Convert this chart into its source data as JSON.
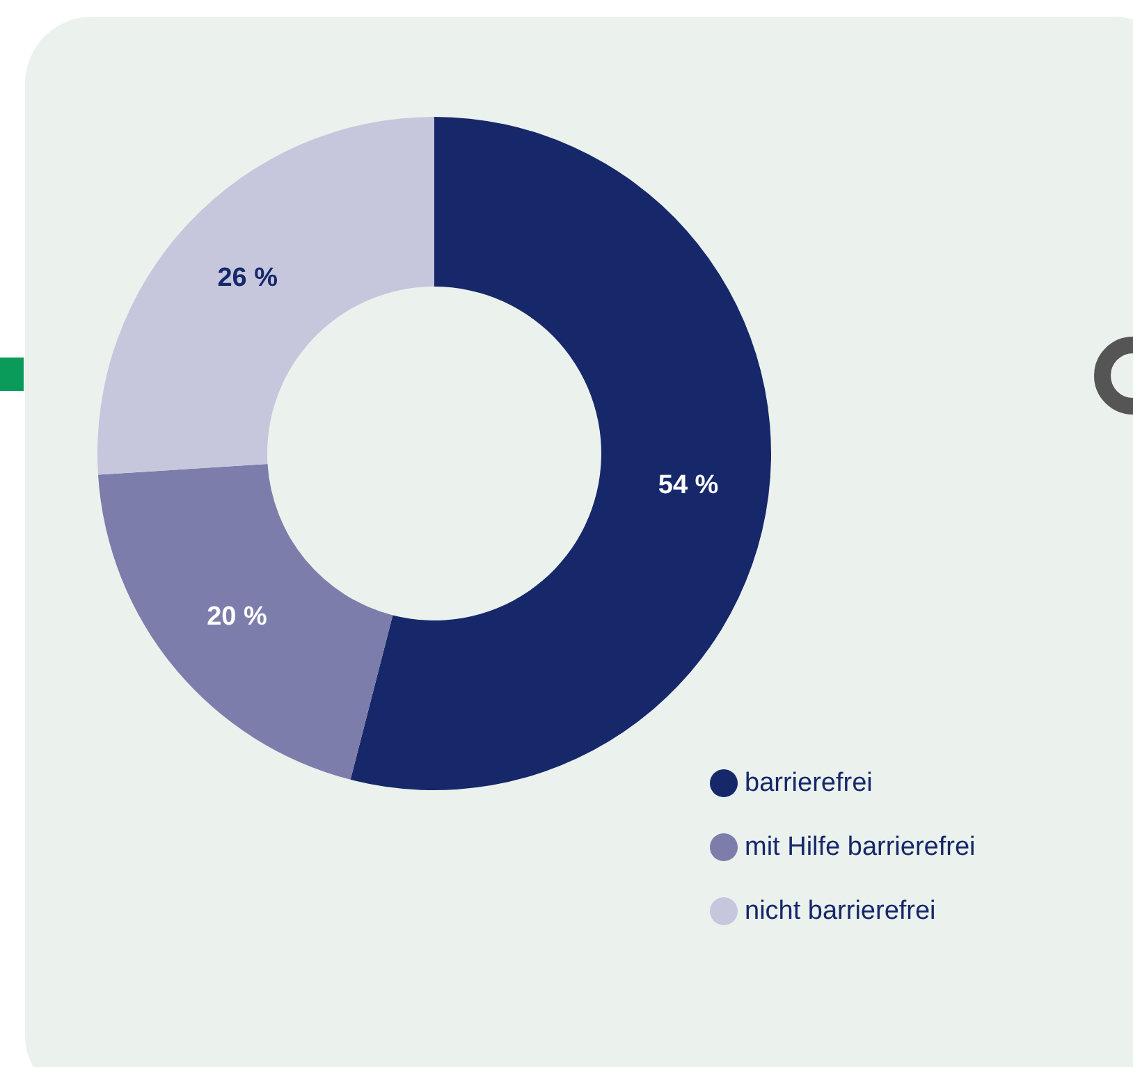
{
  "chart_data": {
    "type": "donut",
    "categories": [
      "barrierefrei",
      "mit Hilfe barrierefrei",
      "nicht barrierefrei"
    ],
    "values": [
      54,
      20,
      26
    ],
    "colors": [
      "#16286a",
      "#7c7dab",
      "#c6c7dd"
    ],
    "value_labels": [
      "54 %",
      "20 %",
      "26 %"
    ],
    "legend": "bottom right"
  }
}
